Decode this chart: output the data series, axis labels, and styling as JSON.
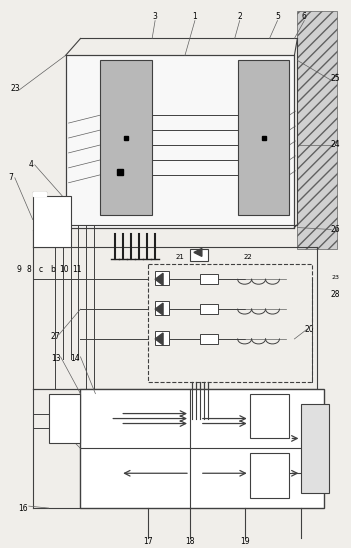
{
  "bg_color": "#f0eeea",
  "lc": "#606060",
  "dc": "#404040",
  "gf": "#b8b8b8",
  "hatch_color": "#909090",
  "fig_w": 3.51,
  "fig_h": 5.48,
  "dpi": 100
}
